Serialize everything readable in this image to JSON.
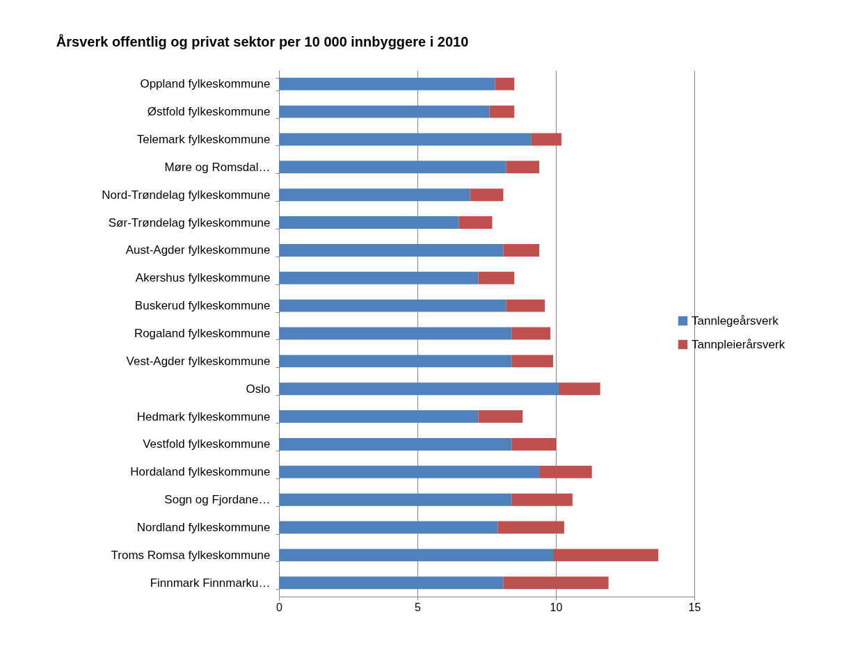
{
  "chart_data": {
    "type": "bar",
    "orientation": "horizontal",
    "stacked": true,
    "title": "Årsverk offentlig og privat sektor per 10 000 innbyggere i 2010",
    "categories": [
      "Oppland fylkeskommune",
      "Østfold fylkeskommune",
      "Telemark fylkeskommune",
      "Møre og Romsdal…",
      "Nord-Trøndelag fylkeskommune",
      "Sør-Trøndelag fylkeskommune",
      "Aust-Agder fylkeskommune",
      "Akershus fylkeskommune",
      "Buskerud fylkeskommune",
      "Rogaland fylkeskommune",
      "Vest-Agder fylkeskommune",
      "Oslo",
      "Hedmark fylkeskommune",
      "Vestfold fylkeskommune",
      "Hordaland fylkeskommune",
      "Sogn og Fjordane…",
      "Nordland fylkeskommune",
      "Troms Romsa fylkeskommune",
      "Finnmark Finnmarku…"
    ],
    "series": [
      {
        "name": "Tannlegeårsverk",
        "color": "#4f81bd",
        "values": [
          7.8,
          7.6,
          9.1,
          8.2,
          6.9,
          6.5,
          8.1,
          7.2,
          8.2,
          8.4,
          8.4,
          10.1,
          7.2,
          8.4,
          9.4,
          8.4,
          7.9,
          9.9,
          8.1
        ]
      },
      {
        "name": "Tannpleierårsverk",
        "color": "#c0504d",
        "values": [
          0.7,
          0.9,
          1.1,
          1.2,
          1.2,
          1.2,
          1.3,
          1.3,
          1.4,
          1.4,
          1.5,
          1.5,
          1.6,
          1.6,
          1.9,
          2.2,
          2.4,
          3.8,
          3.8
        ]
      }
    ],
    "xlim": [
      0,
      15
    ],
    "xticks": [
      0,
      5,
      10,
      15
    ],
    "grid": "x",
    "legend": "right"
  }
}
